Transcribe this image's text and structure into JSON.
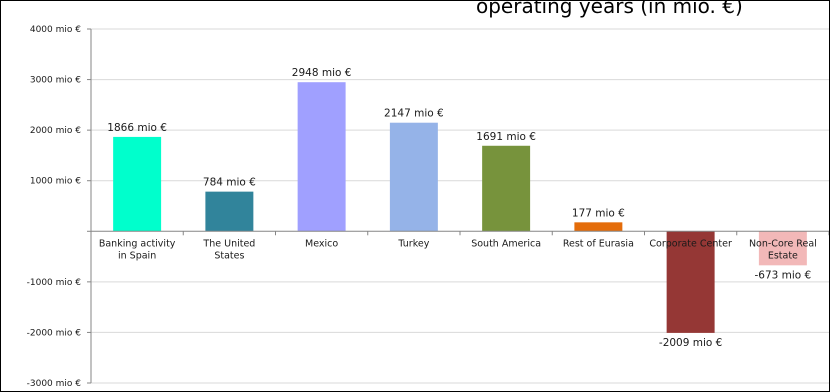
{
  "chart_data": {
    "type": "bar",
    "title": "operating years (in mio. €)",
    "categories": [
      "Banking activity in Spain",
      "The United States",
      "Mexico",
      "Turkey",
      "South America",
      "Rest of Eurasia",
      "Corporate Center",
      "Non-Core Real Estate"
    ],
    "category_lines": [
      [
        "Banking activity",
        "in Spain"
      ],
      [
        "The United",
        "States"
      ],
      [
        "Mexico"
      ],
      [
        "Turkey"
      ],
      [
        "South America"
      ],
      [
        "Rest of Eurasia"
      ],
      [
        "Corporate Center"
      ],
      [
        "Non-Core Real",
        "Estate"
      ]
    ],
    "values": [
      1866,
      784,
      2948,
      2147,
      1691,
      177,
      -2009,
      -673
    ],
    "data_labels": [
      "1866 mio €",
      "784 mio €",
      "2948 mio €",
      "2147 mio €",
      "1691 mio €",
      "177 mio €",
      "-2009 mio €",
      "-673 mio €"
    ],
    "colors": [
      "#00FFCC",
      "#31849B",
      "#A0A0FF",
      "#95B3E8",
      "#77933C",
      "#E46C0A",
      "#953735",
      "#F2B8B8"
    ],
    "yticks": [
      4000,
      3000,
      2000,
      1000,
      0,
      -1000,
      -2000,
      -3000
    ],
    "ytick_labels": [
      "4000 mio €",
      "3000 mio €",
      "2000 mio €",
      "1000 mio €",
      "",
      "-1000 mio €",
      "-2000 mio €",
      "-3000 mio €"
    ],
    "ylim": [
      -3000,
      4000
    ],
    "grid": true,
    "xlabel": "",
    "ylabel": ""
  }
}
